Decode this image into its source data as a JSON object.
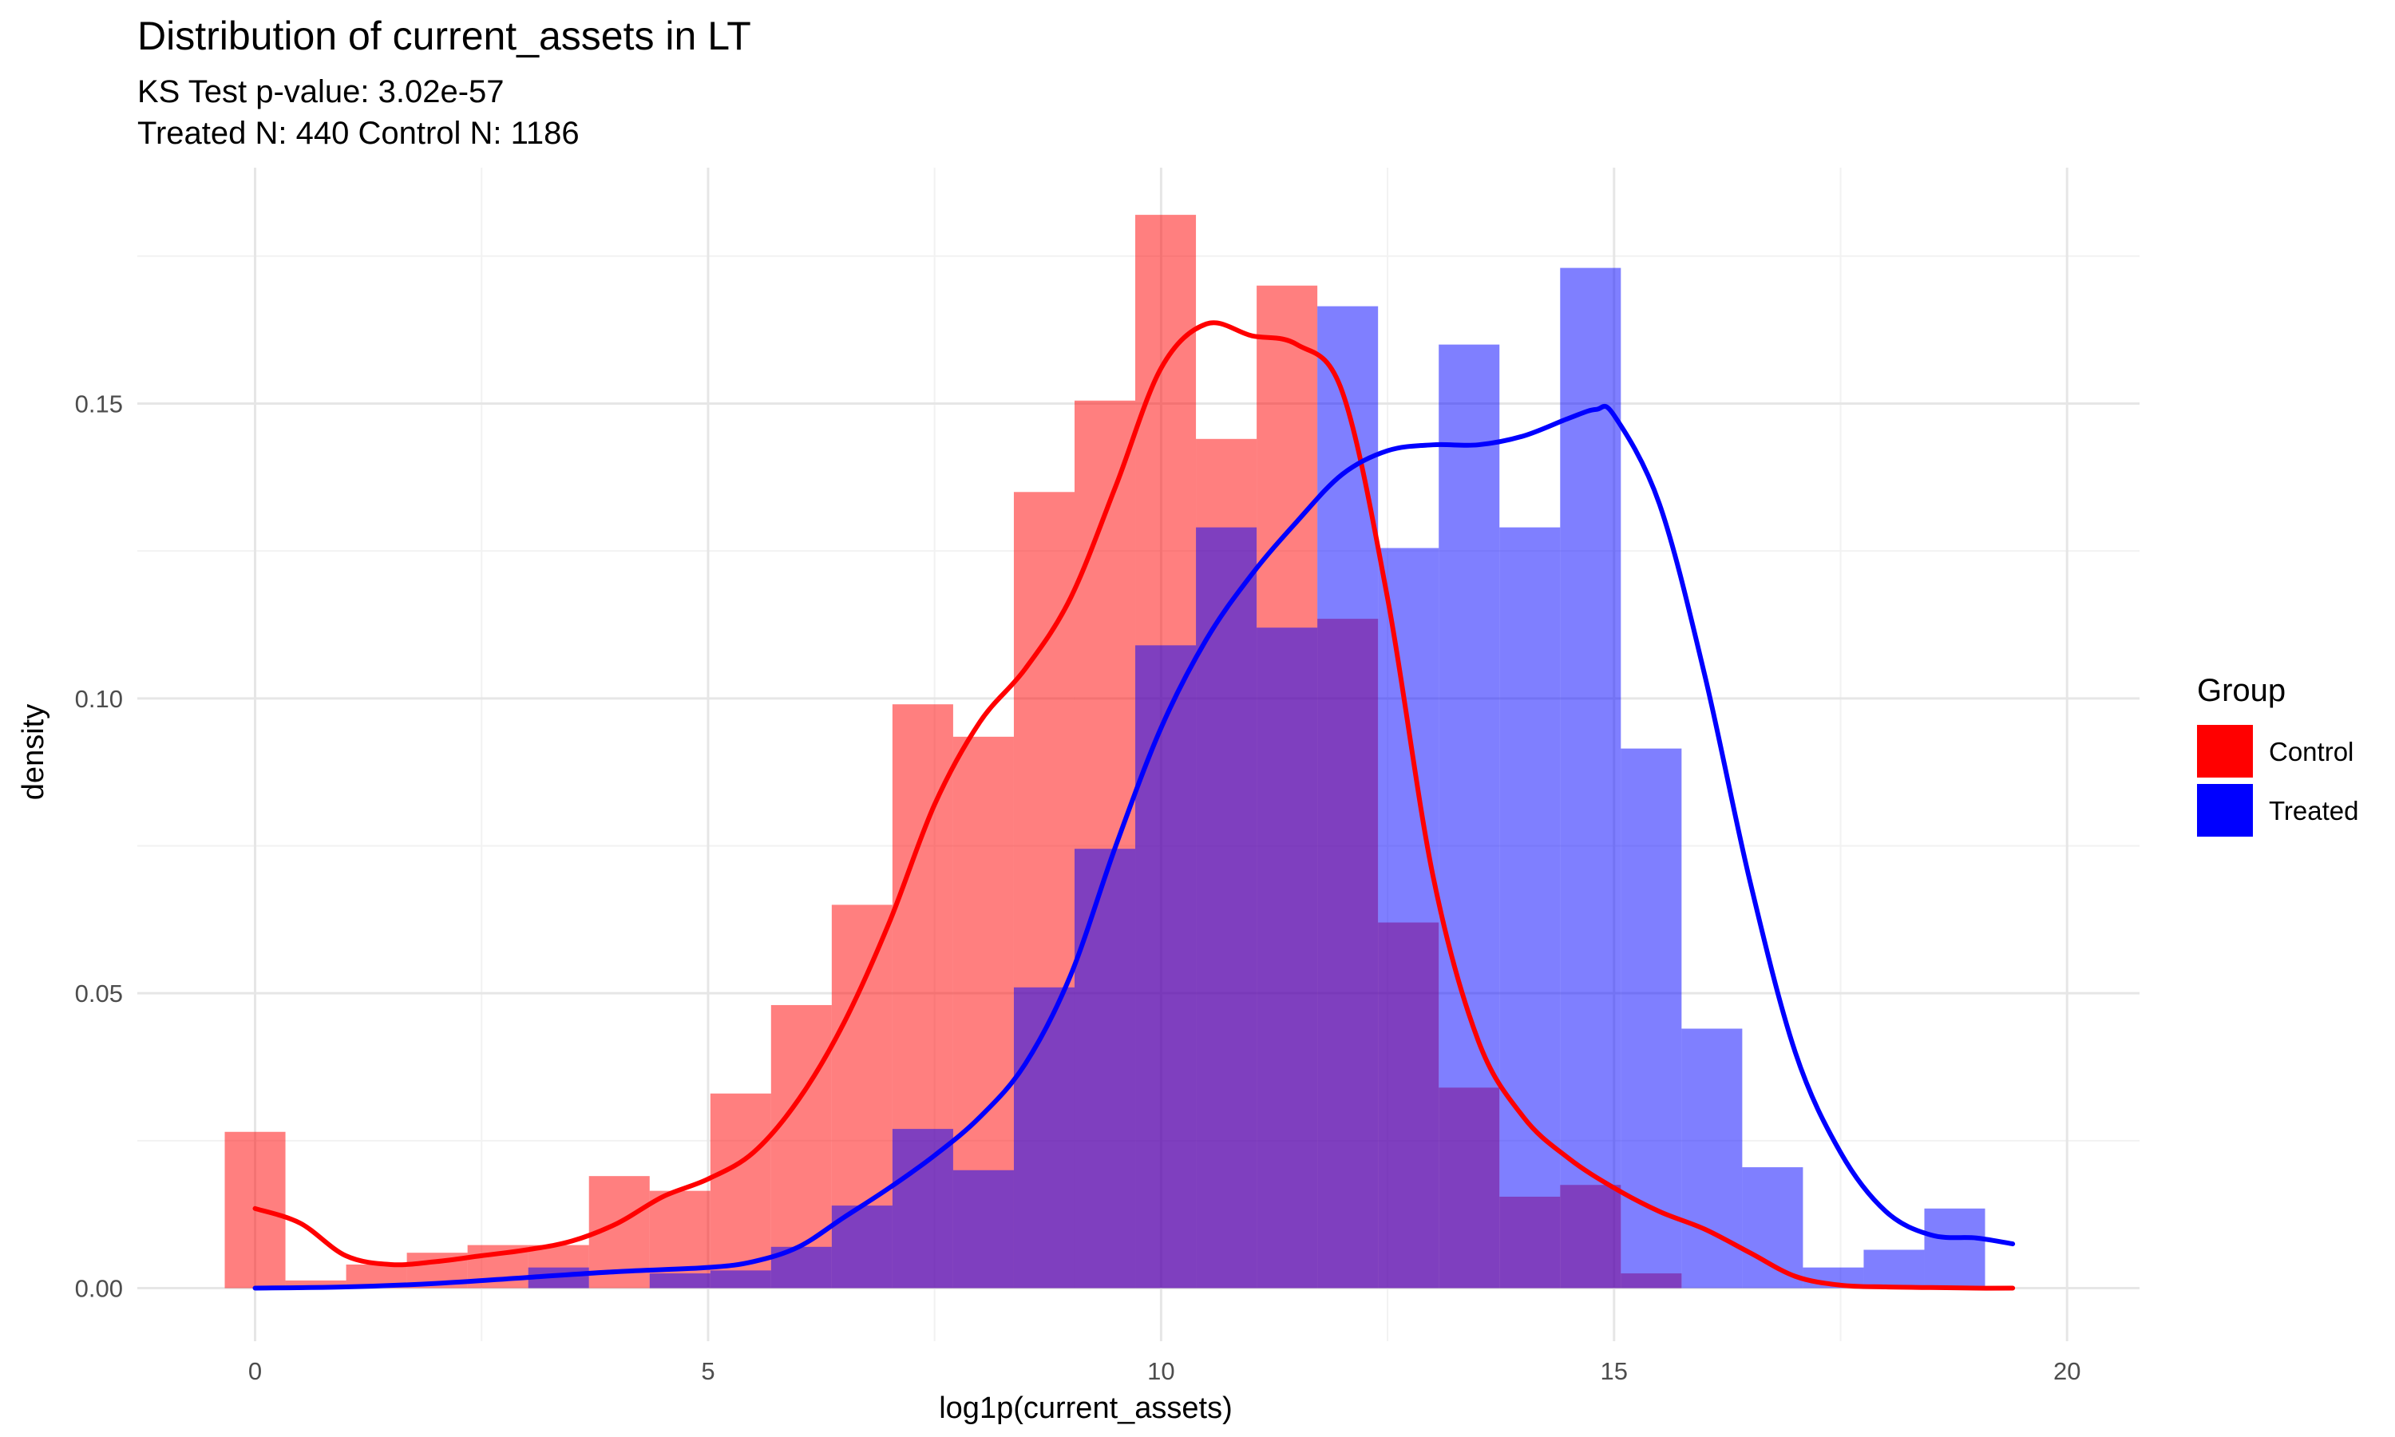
{
  "chart_data": {
    "type": "histogram",
    "title": "Distribution of current_assets in LT",
    "subtitle_lines": [
      "KS Test p-value: 3.02e-57",
      "Treated N: 440 Control N: 1186"
    ],
    "xlabel": "log1p(current_assets)",
    "ylabel": "density",
    "xlim": [
      -1.3,
      20.8
    ],
    "ylim": [
      -0.009,
      0.19
    ],
    "x_ticks": [
      0,
      5,
      10,
      15,
      20
    ],
    "x_tick_labels": [
      "0",
      "5",
      "10",
      "15",
      "20"
    ],
    "y_ticks": [
      0.0,
      0.05,
      0.1,
      0.15
    ],
    "y_tick_labels": [
      "0.00",
      "0.05",
      "0.10",
      "0.15"
    ],
    "grid": true,
    "legend": {
      "title": "Group",
      "position": "right"
    },
    "bin_width": 0.67,
    "bins_start": -0.335,
    "series": [
      {
        "name": "Control",
        "color": "#ff0000",
        "histogram_density": [
          0.0265,
          0.0013,
          0.004,
          0.006,
          0.0073,
          0.0073,
          0.019,
          0.0165,
          0.033,
          0.048,
          0.065,
          0.099,
          0.0935,
          0.135,
          0.1505,
          0.182,
          0.144,
          0.17,
          0.1135,
          0.062,
          0.034,
          0.0155,
          0.0175,
          0.0025
        ],
        "density_curve": {
          "x": [
            0.0,
            0.5,
            1.0,
            1.5,
            2.0,
            2.5,
            3.0,
            3.5,
            4.0,
            4.5,
            5.0,
            5.5,
            6.0,
            6.5,
            7.0,
            7.5,
            8.0,
            8.5,
            9.0,
            9.5,
            10.0,
            10.5,
            11.0,
            11.5,
            12.0,
            12.5,
            13.0,
            13.5,
            14.0,
            14.5,
            15.0,
            15.5,
            16.0,
            16.5,
            17.0,
            17.5,
            18.0,
            18.5,
            19.0,
            19.4
          ],
          "y": [
            0.0135,
            0.011,
            0.0055,
            0.004,
            0.0045,
            0.0055,
            0.0065,
            0.008,
            0.011,
            0.0155,
            0.0185,
            0.023,
            0.032,
            0.045,
            0.062,
            0.082,
            0.096,
            0.105,
            0.117,
            0.136,
            0.156,
            0.1635,
            0.1615,
            0.16,
            0.152,
            0.117,
            0.07,
            0.042,
            0.029,
            0.022,
            0.017,
            0.013,
            0.01,
            0.006,
            0.002,
            0.0005,
            0.0002,
            0.0001,
            0.0,
            0.0
          ]
        }
      },
      {
        "name": "Treated",
        "color": "#0000ff",
        "histogram_density": [
          0,
          0,
          0,
          0,
          0,
          0.0035,
          0.0,
          0.0025,
          0.003,
          0.007,
          0.014,
          0.027,
          0.02,
          0.051,
          0.0745,
          0.109,
          0.129,
          0.112,
          0.1665,
          0.1255,
          0.16,
          0.129,
          0.173,
          0.0915,
          0.044,
          0.0205,
          0.0035,
          0.0065,
          0.0135
        ],
        "density_curve": {
          "x": [
            0.0,
            1.0,
            2.0,
            3.0,
            4.0,
            5.0,
            5.5,
            6.0,
            6.5,
            7.0,
            7.5,
            8.0,
            8.5,
            9.0,
            9.5,
            10.0,
            10.5,
            11.0,
            11.5,
            12.0,
            12.5,
            13.0,
            13.5,
            14.0,
            14.5,
            14.8,
            15.0,
            15.5,
            16.0,
            16.5,
            17.0,
            17.5,
            18.0,
            18.5,
            19.0,
            19.4
          ],
          "y": [
            0.0,
            0.0002,
            0.0008,
            0.0018,
            0.0028,
            0.0035,
            0.0045,
            0.007,
            0.012,
            0.017,
            0.0225,
            0.029,
            0.038,
            0.053,
            0.075,
            0.095,
            0.11,
            0.121,
            0.13,
            0.138,
            0.142,
            0.143,
            0.143,
            0.1445,
            0.1475,
            0.149,
            0.148,
            0.133,
            0.104,
            0.069,
            0.04,
            0.023,
            0.013,
            0.009,
            0.0085,
            0.0075
          ]
        }
      }
    ]
  }
}
